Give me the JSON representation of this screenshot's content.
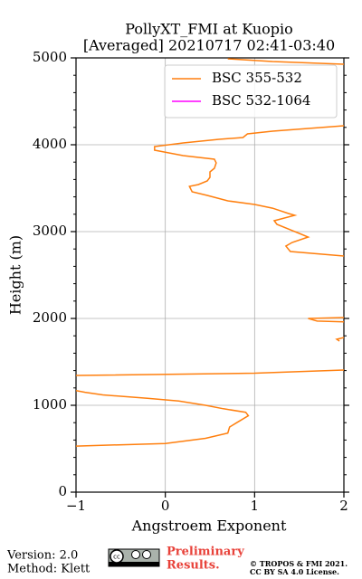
{
  "chart_data": {
    "type": "line",
    "title": [
      "PollyXT_FMI at Kuopio",
      "[Averaged] 20210717 02:41-03:40"
    ],
    "x_label": "Angstroem Exponent",
    "y_label": "Height (m)",
    "xlim": [
      -1,
      2
    ],
    "xticks": [
      {
        "value": -1,
        "label": "−1"
      },
      0,
      1,
      2
    ],
    "ylim": [
      0,
      5000
    ],
    "yticks": [
      0,
      1000,
      2000,
      3000,
      4000,
      5000
    ],
    "yminorticks": [
      200,
      400,
      600,
      800,
      1200,
      1400,
      1600,
      1800,
      2200,
      2400,
      2600,
      2800,
      3200,
      3400,
      3600,
      3800,
      4200,
      4400,
      4600,
      4800
    ],
    "grid": true,
    "legend": "upper right",
    "y": [
      530,
      560,
      620,
      680,
      750,
      800,
      880,
      920,
      960,
      1000,
      1050,
      1080,
      1120,
      1150,
      1170,
      null,
      1344,
      1370,
      1406,
      null,
      1740,
      1760,
      1780,
      null,
      1960,
      1970,
      2000,
      2010,
      null,
      2719,
      2771,
      2833,
      2875,
      2937,
      2979,
      3083,
      3125,
      3187,
      3208,
      3270,
      3312,
      3354,
      3417,
      3458,
      3521,
      3542,
      3583,
      3625,
      3687,
      3729,
      3792,
      3833,
      3875,
      3937,
      3979,
      4021,
      4062,
      4083,
      4125,
      4156,
      4187,
      4219,
      null,
      4927,
      4958,
      4990
    ],
    "series": [
      {
        "name": "BSC 355-532",
        "color": "#ff7f0e",
        "values": [
          -1.0,
          0.0,
          0.45,
          0.7,
          0.72,
          0.8,
          0.93,
          0.9,
          0.65,
          0.45,
          0.15,
          -0.2,
          -0.7,
          -0.9,
          -1.0,
          null,
          -1.0,
          1.0,
          2.0,
          null,
          1.95,
          1.92,
          2.0,
          null,
          2.0,
          1.7,
          1.6,
          2.0,
          null,
          2.0,
          1.4,
          1.35,
          1.42,
          1.6,
          1.5,
          1.25,
          1.22,
          1.45,
          1.38,
          1.2,
          1.0,
          0.7,
          0.47,
          0.3,
          0.27,
          0.37,
          0.47,
          0.5,
          0.5,
          0.55,
          0.57,
          0.55,
          0.2,
          -0.12,
          -0.12,
          0.2,
          0.6,
          0.87,
          0.92,
          1.2,
          1.6,
          2.0,
          null,
          2.0,
          1.2,
          0.7
        ]
      },
      {
        "name": "BSC 532-1064",
        "color": "#ff00ff",
        "values": [
          null,
          null,
          null,
          null,
          null,
          null,
          null,
          null,
          null,
          null,
          null,
          null,
          null,
          null,
          null,
          null,
          null,
          null,
          null,
          null,
          null,
          null,
          null,
          null,
          null,
          null,
          null,
          null,
          null,
          null,
          null,
          null,
          null,
          null,
          null,
          null,
          null,
          null,
          null,
          null,
          null,
          null,
          null,
          null,
          null,
          null,
          null,
          null,
          null,
          null,
          null,
          null,
          null,
          null,
          null,
          null,
          null,
          null,
          null,
          null,
          null,
          null,
          null,
          null,
          null,
          null
        ]
      }
    ]
  },
  "footer": {
    "version": "Version: 2.0",
    "method": "Method: Klett",
    "notice": [
      "Preliminary",
      "Results."
    ],
    "copyright": [
      "© TROPOS & FMI 2021.",
      "CC BY SA 4.0 License."
    ]
  }
}
